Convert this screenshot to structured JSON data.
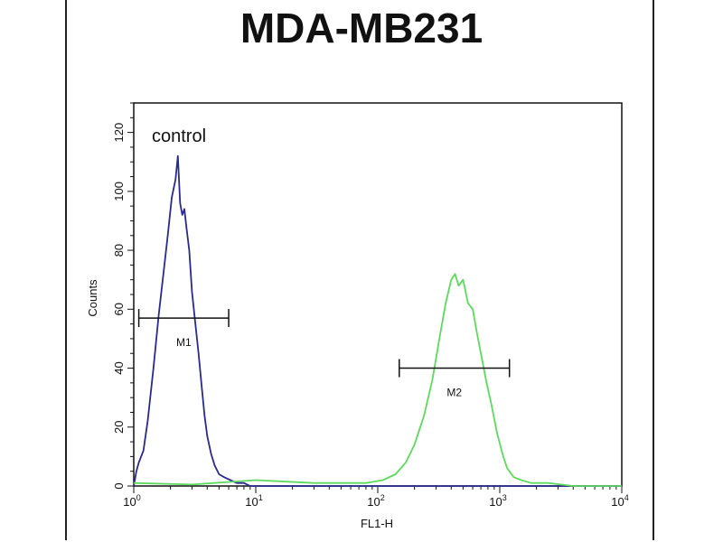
{
  "chart_data": {
    "type": "line",
    "title": "MDA-MB231",
    "xlabel": "FL1-H",
    "ylabel": "Counts",
    "x_scale": "log",
    "xlim": [
      1,
      10000
    ],
    "ylim": [
      0,
      130
    ],
    "x_ticks": [
      {
        "value": 1,
        "base": "10",
        "exp": "0"
      },
      {
        "value": 10,
        "base": "10",
        "exp": "1"
      },
      {
        "value": 100,
        "base": "10",
        "exp": "2"
      },
      {
        "value": 1000,
        "base": "10",
        "exp": "3"
      },
      {
        "value": 10000,
        "base": "10",
        "exp": "4"
      }
    ],
    "y_ticks": [
      0,
      20,
      40,
      60,
      80,
      100,
      120
    ],
    "annotation": "control",
    "series": [
      {
        "color": "#2a2a8c",
        "x": [
          1.0,
          1.05,
          1.1,
          1.2,
          1.3,
          1.45,
          1.6,
          1.75,
          1.9,
          2.05,
          2.2,
          2.3,
          2.4,
          2.5,
          2.6,
          2.7,
          2.85,
          3.0,
          3.2,
          3.4,
          3.6,
          3.8,
          4.0,
          4.3,
          4.6,
          5.0,
          5.5,
          6.2,
          7.0,
          8.0,
          9.0,
          10.0,
          20,
          100,
          1000,
          10000
        ],
        "y": [
          0,
          5,
          8,
          12,
          22,
          40,
          58,
          72,
          85,
          98,
          104,
          112,
          96,
          92,
          94,
          88,
          80,
          66,
          55,
          45,
          34,
          24,
          17,
          11,
          7,
          4,
          3,
          2,
          1,
          1,
          0,
          0,
          0,
          0,
          0,
          0
        ]
      },
      {
        "color": "#5fd85f",
        "x": [
          1.0,
          3.0,
          10,
          30,
          50,
          80,
          110,
          140,
          170,
          200,
          240,
          280,
          320,
          360,
          400,
          430,
          460,
          500,
          550,
          600,
          650,
          700,
          780,
          850,
          950,
          1050,
          1150,
          1300,
          1500,
          1800,
          2500,
          4000,
          10000
        ],
        "y": [
          1,
          0.5,
          2,
          1,
          1,
          1,
          2,
          4,
          8,
          14,
          24,
          36,
          50,
          62,
          70,
          72,
          68,
          70,
          62,
          60,
          52,
          45,
          35,
          28,
          18,
          11,
          6,
          3,
          2,
          1,
          1,
          0,
          0
        ]
      }
    ],
    "markers": [
      {
        "label": "M1",
        "x_start": 1.1,
        "x_end": 6.0,
        "y": 57
      },
      {
        "label": "M2",
        "x_start": 150,
        "x_end": 1200,
        "y": 40
      }
    ]
  }
}
